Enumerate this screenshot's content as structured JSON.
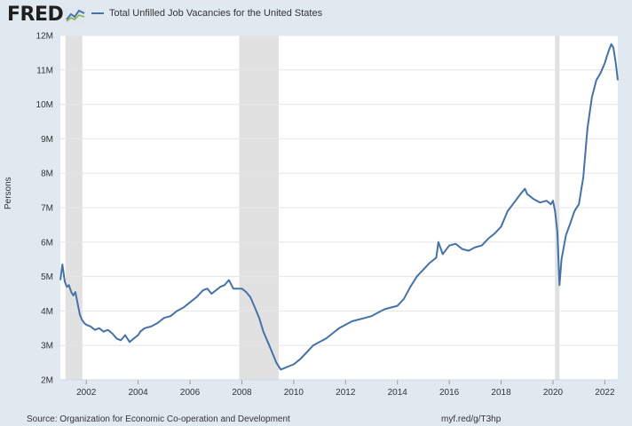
{
  "brand": {
    "name": "FRED",
    "accent_color": "#4572a7"
  },
  "footer": {
    "source": "Source: Organization for Economic Co-operation and Development",
    "short_url": "myf.red/g/T3hp"
  },
  "chart_data": {
    "type": "line",
    "title": "",
    "legend": [
      "Total Unfilled Job Vacancies for the United States"
    ],
    "ylabel": "Persons",
    "xlabel": "",
    "xlim": [
      2001.0,
      2022.5
    ],
    "ylim": [
      2000000,
      12000000
    ],
    "grid": true,
    "line_color": "#4572a7",
    "recession_color": "#e1e1e1",
    "y_ticks": [
      {
        "value": 2000000,
        "label": "2M"
      },
      {
        "value": 3000000,
        "label": "3M"
      },
      {
        "value": 4000000,
        "label": "4M"
      },
      {
        "value": 5000000,
        "label": "5M"
      },
      {
        "value": 6000000,
        "label": "6M"
      },
      {
        "value": 7000000,
        "label": "7M"
      },
      {
        "value": 8000000,
        "label": "8M"
      },
      {
        "value": 9000000,
        "label": "9M"
      },
      {
        "value": 10000000,
        "label": "10M"
      },
      {
        "value": 11000000,
        "label": "11M"
      },
      {
        "value": 12000000,
        "label": "12M"
      }
    ],
    "x_ticks": [
      {
        "value": 2002,
        "label": "2002"
      },
      {
        "value": 2004,
        "label": "2004"
      },
      {
        "value": 2006,
        "label": "2006"
      },
      {
        "value": 2008,
        "label": "2008"
      },
      {
        "value": 2010,
        "label": "2010"
      },
      {
        "value": 2012,
        "label": "2012"
      },
      {
        "value": 2014,
        "label": "2014"
      },
      {
        "value": 2016,
        "label": "2016"
      },
      {
        "value": 2018,
        "label": "2018"
      },
      {
        "value": 2020,
        "label": "2020"
      },
      {
        "value": 2022,
        "label": "2022"
      }
    ],
    "recessions": [
      {
        "start": 2001.2,
        "end": 2001.85
      },
      {
        "start": 2007.9,
        "end": 2009.42
      },
      {
        "start": 2020.08,
        "end": 2020.25
      }
    ],
    "series": [
      {
        "name": "Total Unfilled Job Vacancies for the United States",
        "x": [
          2001.0,
          2001.08,
          2001.17,
          2001.25,
          2001.33,
          2001.42,
          2001.5,
          2001.58,
          2001.67,
          2001.75,
          2001.83,
          2001.92,
          2002.0,
          2002.17,
          2002.33,
          2002.5,
          2002.67,
          2002.83,
          2003.0,
          2003.17,
          2003.33,
          2003.5,
          2003.67,
          2003.83,
          2004.0,
          2004.08,
          2004.25,
          2004.5,
          2004.75,
          2005.0,
          2005.25,
          2005.5,
          2005.75,
          2006.0,
          2006.25,
          2006.5,
          2006.67,
          2006.83,
          2007.0,
          2007.17,
          2007.33,
          2007.5,
          2007.67,
          2007.83,
          2008.0,
          2008.17,
          2008.33,
          2008.5,
          2008.67,
          2008.83,
          2009.0,
          2009.17,
          2009.33,
          2009.5,
          2009.67,
          2009.83,
          2010.0,
          2010.25,
          2010.5,
          2010.75,
          2011.0,
          2011.25,
          2011.5,
          2011.75,
          2012.0,
          2012.25,
          2012.5,
          2012.75,
          2013.0,
          2013.25,
          2013.5,
          2013.75,
          2014.0,
          2014.25,
          2014.5,
          2014.75,
          2015.0,
          2015.25,
          2015.5,
          2015.58,
          2015.75,
          2016.0,
          2016.25,
          2016.5,
          2016.75,
          2017.0,
          2017.25,
          2017.5,
          2017.75,
          2018.0,
          2018.25,
          2018.5,
          2018.75,
          2018.92,
          2019.0,
          2019.25,
          2019.5,
          2019.75,
          2019.92,
          2020.0,
          2020.08,
          2020.17,
          2020.25,
          2020.33,
          2020.5,
          2020.67,
          2020.83,
          2021.0,
          2021.17,
          2021.33,
          2021.5,
          2021.67,
          2021.83,
          2022.0,
          2022.08,
          2022.17,
          2022.25,
          2022.33,
          2022.42,
          2022.5
        ],
        "values": [
          4900000,
          5350000,
          4850000,
          4700000,
          4750000,
          4550000,
          4450000,
          4550000,
          4200000,
          3900000,
          3750000,
          3650000,
          3600000,
          3550000,
          3450000,
          3500000,
          3400000,
          3450000,
          3350000,
          3200000,
          3150000,
          3300000,
          3100000,
          3200000,
          3300000,
          3400000,
          3500000,
          3550000,
          3650000,
          3800000,
          3850000,
          4000000,
          4100000,
          4250000,
          4400000,
          4600000,
          4650000,
          4500000,
          4600000,
          4700000,
          4750000,
          4900000,
          4650000,
          4650000,
          4650000,
          4550000,
          4400000,
          4100000,
          3800000,
          3400000,
          3100000,
          2800000,
          2500000,
          2300000,
          2350000,
          2400000,
          2450000,
          2600000,
          2800000,
          3000000,
          3100000,
          3200000,
          3350000,
          3500000,
          3600000,
          3700000,
          3750000,
          3800000,
          3850000,
          3950000,
          4050000,
          4100000,
          4150000,
          4350000,
          4700000,
          5000000,
          5200000,
          5400000,
          5550000,
          6000000,
          5650000,
          5900000,
          5950000,
          5800000,
          5750000,
          5850000,
          5900000,
          6100000,
          6250000,
          6450000,
          6900000,
          7150000,
          7400000,
          7550000,
          7400000,
          7250000,
          7150000,
          7200000,
          7100000,
          7200000,
          6900000,
          6300000,
          4750000,
          5500000,
          6200000,
          6550000,
          6900000,
          7100000,
          7900000,
          9300000,
          10200000,
          10700000,
          10900000,
          11200000,
          11400000,
          11600000,
          11750000,
          11650000,
          11200000,
          10700000
        ]
      }
    ]
  }
}
